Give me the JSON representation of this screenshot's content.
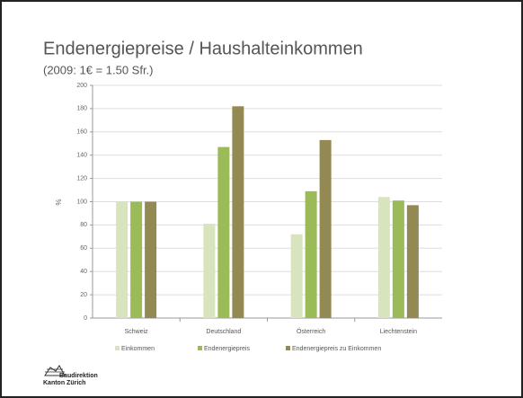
{
  "title": "Endenergiepreise / Haushalteinkommen",
  "subtitle": "(2009: 1€ = 1.50 Sfr.)",
  "chart_data": {
    "type": "bar",
    "y_label": "%",
    "categories": [
      "Schweiz",
      "Deutschland",
      "Österreich",
      "Liechtenstein"
    ],
    "series": [
      {
        "name": "Einkommen",
        "color": "#d7e4bd",
        "values": [
          100,
          81,
          72,
          104
        ]
      },
      {
        "name": "Endenergiepreis",
        "color": "#9bbb59",
        "values": [
          100,
          147,
          109,
          101
        ]
      },
      {
        "name": "Endenergiepreis zu Einkommen",
        "color": "#938953",
        "values": [
          100,
          182,
          153,
          97
        ]
      }
    ],
    "ylim": [
      0,
      200
    ],
    "yticks": [
      0,
      20,
      40,
      60,
      80,
      100,
      120,
      140,
      160,
      180,
      200
    ],
    "grid": true,
    "legend": "bottom"
  },
  "logo": {
    "line1": "Baudirektion",
    "line2": "Kanton Zürich"
  }
}
